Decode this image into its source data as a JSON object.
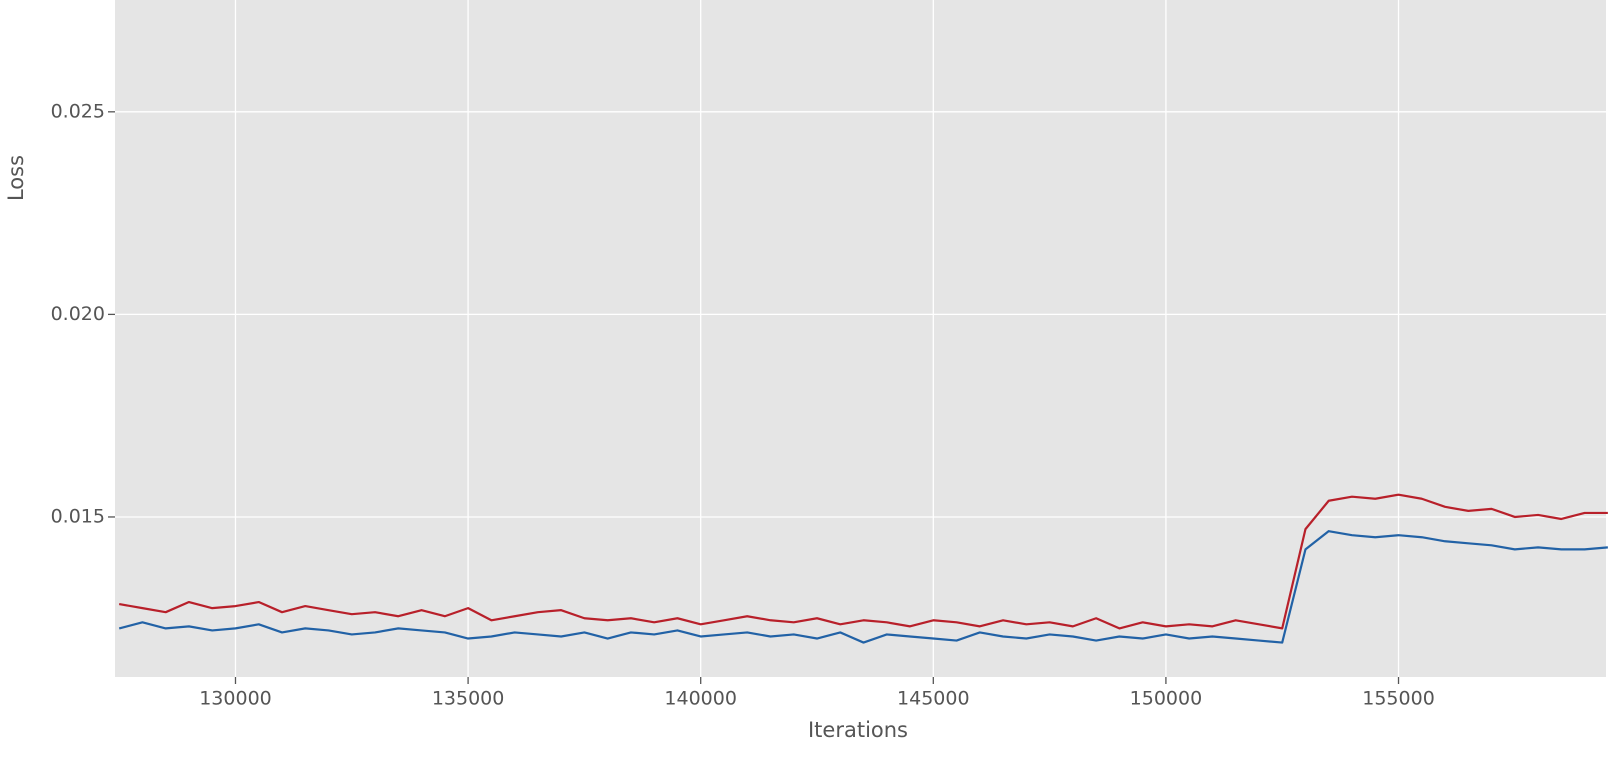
{
  "chart_data": {
    "type": "line",
    "xlabel": "Iterations",
    "ylabel": "Loss",
    "x": [
      127500,
      128000,
      128500,
      129000,
      129500,
      130000,
      130500,
      131000,
      131500,
      132000,
      132500,
      133000,
      133500,
      134000,
      134500,
      135000,
      135500,
      136000,
      136500,
      137000,
      137500,
      138000,
      138500,
      139000,
      139500,
      140000,
      140500,
      141000,
      141500,
      142000,
      142500,
      143000,
      143500,
      144000,
      144500,
      145000,
      145500,
      146000,
      146500,
      147000,
      147500,
      148000,
      148500,
      149000,
      149500,
      150000,
      150500,
      151000,
      151500,
      152000,
      152500,
      153000,
      153500,
      154000,
      154500,
      155000,
      155500,
      156000,
      156500,
      157000,
      157500,
      158000,
      158500,
      159000,
      159500
    ],
    "series": [
      {
        "color": "#b8202a",
        "values": [
          0.01285,
          0.01275,
          0.01265,
          0.0129,
          0.01275,
          0.0128,
          0.0129,
          0.01265,
          0.0128,
          0.0127,
          0.0126,
          0.01265,
          0.01255,
          0.0127,
          0.01255,
          0.01275,
          0.01245,
          0.01255,
          0.01265,
          0.0127,
          0.0125,
          0.01245,
          0.0125,
          0.0124,
          0.0125,
          0.01235,
          0.01245,
          0.01255,
          0.01245,
          0.0124,
          0.0125,
          0.01235,
          0.01245,
          0.0124,
          0.0123,
          0.01245,
          0.0124,
          0.0123,
          0.01245,
          0.01235,
          0.0124,
          0.0123,
          0.0125,
          0.01225,
          0.0124,
          0.0123,
          0.01235,
          0.0123,
          0.01245,
          0.01235,
          0.01225,
          0.0147,
          0.0154,
          0.0155,
          0.01545,
          0.01555,
          0.01545,
          0.01525,
          0.01515,
          0.0152,
          0.015,
          0.01505,
          0.01495,
          0.0151,
          0.0151
        ]
      },
      {
        "color": "#2262a6",
        "values": [
          0.01225,
          0.0124,
          0.01225,
          0.0123,
          0.0122,
          0.01225,
          0.01235,
          0.01215,
          0.01225,
          0.0122,
          0.0121,
          0.01215,
          0.01225,
          0.0122,
          0.01215,
          0.012,
          0.01205,
          0.01215,
          0.0121,
          0.01205,
          0.01215,
          0.012,
          0.01215,
          0.0121,
          0.0122,
          0.01205,
          0.0121,
          0.01215,
          0.01205,
          0.0121,
          0.012,
          0.01215,
          0.0119,
          0.0121,
          0.01205,
          0.012,
          0.01195,
          0.01215,
          0.01205,
          0.012,
          0.0121,
          0.01205,
          0.01195,
          0.01205,
          0.012,
          0.0121,
          0.012,
          0.01205,
          0.012,
          0.01195,
          0.0119,
          0.0142,
          0.01465,
          0.01455,
          0.0145,
          0.01455,
          0.0145,
          0.0144,
          0.01435,
          0.0143,
          0.0142,
          0.01425,
          0.0142,
          0.0142,
          0.01425
        ]
      }
    ],
    "xlim": [
      127410,
      159460
    ],
    "ylim": [
      0.01105,
      0.02776
    ],
    "xticks": [
      130000,
      135000,
      140000,
      145000,
      150000,
      155000
    ],
    "yticks": [
      0.015,
      {
        "value": 0.02,
        "label": "0.020"
      },
      0.025
    ],
    "grid": true,
    "background": "#e5e5e5"
  }
}
